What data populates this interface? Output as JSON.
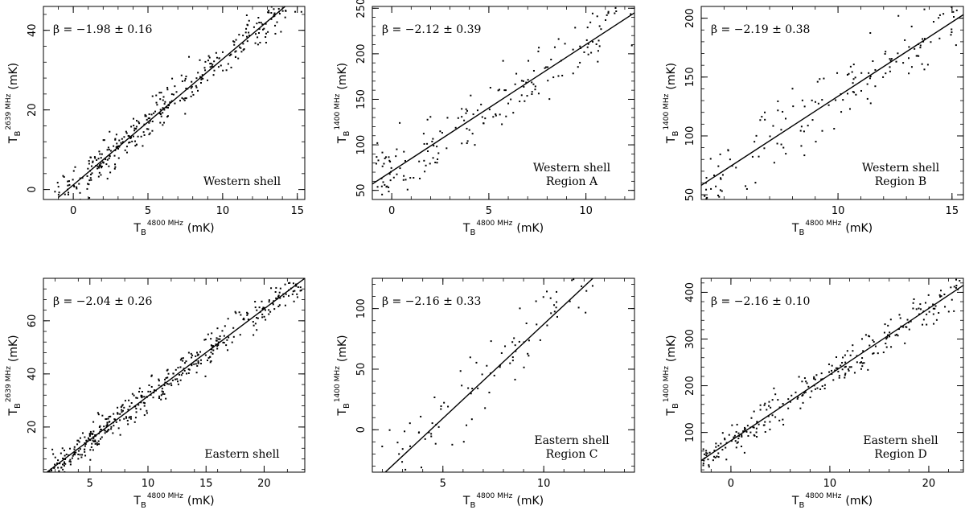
{
  "chart_data": [
    {
      "type": "scatter",
      "xlabel": {
        "main": "T",
        "sub": "B",
        "sup": "4800 MHz",
        "unit": "(mK)"
      },
      "ylabel": {
        "main": "T",
        "sub": "B",
        "sup": "2639 MHz",
        "unit": "(mK)"
      },
      "xlim": [
        -2,
        15.5
      ],
      "ylim": [
        -2.5,
        46
      ],
      "xticks": [
        0,
        5,
        10,
        15
      ],
      "yticks": [
        0,
        20,
        40
      ],
      "beta_label": "β = −1.98 ± 0.16",
      "annotation": [
        "Western shell"
      ],
      "fit_line": [
        [
          -1,
          -2
        ],
        [
          14.5,
          47
        ]
      ],
      "scatter": {
        "n": 380,
        "seed": 11,
        "xmin": -1.5,
        "xmax": 15.3,
        "slope": 3.16,
        "intercept": 1.2,
        "noise": 3.6
      }
    },
    {
      "type": "scatter",
      "xlabel": {
        "main": "T",
        "sub": "B",
        "sup": "4800 MHz",
        "unit": "(mK)"
      },
      "ylabel": {
        "main": "T",
        "sub": "B",
        "sup": "1400 MHz",
        "unit": "(mK)"
      },
      "xlim": [
        -1,
        12.5
      ],
      "ylim": [
        40,
        252
      ],
      "xticks": [
        0,
        5,
        10
      ],
      "yticks": [
        50,
        100,
        150,
        200,
        250
      ],
      "beta_label": "β = −2.12 ± 0.39",
      "annotation": [
        "Western shell",
        "Region A"
      ],
      "fit_line": [
        [
          -1,
          57
        ],
        [
          12.5,
          245
        ]
      ],
      "scatter": {
        "n": 175,
        "seed": 23,
        "xmin": -0.8,
        "xmax": 12.4,
        "slope": 13.9,
        "intercept": 71,
        "noise": 24
      }
    },
    {
      "type": "scatter",
      "xlabel": {
        "main": "T",
        "sub": "B",
        "sup": "4800 MHz",
        "unit": "(mK)"
      },
      "ylabel": {
        "main": "T",
        "sub": "B",
        "sup": "1400 MHz",
        "unit": "(mK)"
      },
      "xlim": [
        4,
        15.5
      ],
      "ylim": [
        46,
        210
      ],
      "xticks": [
        10,
        15
      ],
      "yticks": [
        50,
        100,
        150,
        200
      ],
      "beta_label": "β = −2.19 ± 0.38",
      "annotation": [
        "Western shell",
        "Region B"
      ],
      "fit_line": [
        [
          4,
          58
        ],
        [
          15.5,
          203
        ]
      ],
      "scatter": {
        "n": 150,
        "seed": 37,
        "xmin": 4.1,
        "xmax": 15.3,
        "slope": 12.6,
        "intercept": 7.5,
        "noise": 20
      }
    },
    {
      "type": "scatter",
      "xlabel": {
        "main": "T",
        "sub": "B",
        "sup": "4800 MHz",
        "unit": "(mK)"
      },
      "ylabel": {
        "main": "T",
        "sub": "B",
        "sup": "2639 MHz",
        "unit": "(mK)"
      },
      "xlim": [
        1,
        23.5
      ],
      "ylim": [
        3,
        76
      ],
      "xticks": [
        5,
        10,
        15,
        20
      ],
      "yticks": [
        20,
        40,
        60
      ],
      "beta_label": "β = −2.04 ± 0.26",
      "annotation": [
        "Eastern shell"
      ],
      "fit_line": [
        [
          1,
          2
        ],
        [
          23.5,
          76
        ]
      ],
      "scatter": {
        "n": 420,
        "seed": 53,
        "xmin": 1.5,
        "xmax": 23.2,
        "slope": 3.29,
        "intercept": -1.3,
        "noise": 4.2
      }
    },
    {
      "type": "scatter",
      "xlabel": {
        "main": "T",
        "sub": "B",
        "sup": "4800 MHz",
        "unit": "(mK)"
      },
      "ylabel": {
        "main": "T",
        "sub": "B",
        "sup": "1400 MHz",
        "unit": "(mK)"
      },
      "xlim": [
        1.5,
        14.5
      ],
      "ylim": [
        -35,
        125
      ],
      "xticks": [
        5,
        10
      ],
      "yticks": [
        0,
        50,
        100
      ],
      "beta_label": "β = −2.16 ± 0.33",
      "annotation": [
        "Eastern shell",
        "Region C"
      ],
      "fit_line": [
        [
          1.5,
          -45
        ],
        [
          12.5,
          126
        ]
      ],
      "scatter": {
        "n": 120,
        "seed": 71,
        "xmin": 1.8,
        "xmax": 14.2,
        "slope": 15.5,
        "intercept": -68,
        "noise": 22
      }
    },
    {
      "type": "scatter",
      "xlabel": {
        "main": "T",
        "sub": "B",
        "sup": "4800 MHz",
        "unit": "(mK)"
      },
      "ylabel": {
        "main": "T",
        "sub": "B",
        "sup": "1400 MHz",
        "unit": "(mK)"
      },
      "xlim": [
        -3,
        23.5
      ],
      "ylim": [
        15,
        430
      ],
      "xticks": [
        0,
        10,
        20
      ],
      "yticks": [
        100,
        200,
        300,
        400
      ],
      "beta_label": "β = −2.16 ± 0.10",
      "annotation": [
        "Eastern shell",
        "Region D"
      ],
      "fit_line": [
        [
          -3,
          40
        ],
        [
          23.5,
          415
        ]
      ],
      "scatter": {
        "n": 260,
        "seed": 89,
        "xmin": -2.8,
        "xmax": 23.2,
        "slope": 14.1,
        "intercept": 82,
        "noise": 26
      }
    }
  ]
}
